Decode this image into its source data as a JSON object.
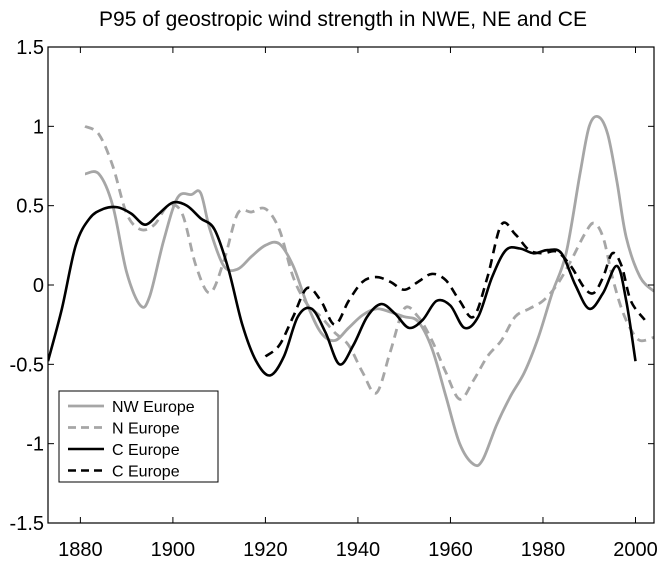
{
  "chart_data": {
    "type": "line",
    "title": "P95 of geostropic wind strength in NWE, NE and CE",
    "xlabel": "",
    "ylabel": "",
    "xlim": [
      1873,
      2004
    ],
    "ylim": [
      -1.5,
      1.5
    ],
    "xticks": [
      1880,
      1900,
      1920,
      1940,
      1960,
      1980,
      2000
    ],
    "yticks": [
      1.5,
      1,
      0.5,
      0,
      -0.5,
      -1,
      -1.5
    ],
    "xtick_labels": [
      "1880",
      "1900",
      "1920",
      "1940",
      "1960",
      "1980",
      "2000"
    ],
    "ytick_labels": [
      "1.5",
      "1",
      "0.5",
      "0",
      "-0.5",
      "-1",
      "-1.5"
    ],
    "legend_position": "bottom-left",
    "grid": false,
    "series": [
      {
        "name": "NW Europe",
        "color": "#a6a6a6",
        "dash": "solid",
        "x": [
          1881,
          1884,
          1887,
          1890,
          1893,
          1895,
          1898,
          1901,
          1904,
          1906,
          1908,
          1911,
          1914,
          1917,
          1920,
          1923,
          1926,
          1929,
          1932,
          1935,
          1938,
          1941,
          1944,
          1947,
          1950,
          1953,
          1956,
          1959,
          1962,
          1965,
          1967,
          1970,
          1973,
          1976,
          1979,
          1982,
          1985,
          1988,
          1990,
          1992,
          1994,
          1996,
          1998,
          2001,
          2004
        ],
        "y": [
          0.7,
          0.7,
          0.5,
          0.08,
          -0.13,
          -0.07,
          0.28,
          0.55,
          0.57,
          0.58,
          0.35,
          0.12,
          0.1,
          0.18,
          0.25,
          0.26,
          0.12,
          -0.12,
          -0.3,
          -0.35,
          -0.27,
          -0.19,
          -0.15,
          -0.17,
          -0.2,
          -0.23,
          -0.4,
          -0.7,
          -1.0,
          -1.13,
          -1.1,
          -0.88,
          -0.7,
          -0.55,
          -0.33,
          -0.05,
          0.2,
          0.7,
          1.0,
          1.06,
          0.95,
          0.65,
          0.3,
          0.05,
          -0.04
        ]
      },
      {
        "name": "N Europe",
        "color": "#a6a6a6",
        "dash": "dashed",
        "x": [
          1881,
          1884,
          1887,
          1890,
          1893,
          1896,
          1899,
          1902,
          1905,
          1908,
          1911,
          1914,
          1917,
          1920,
          1923,
          1926,
          1929,
          1932,
          1935,
          1938,
          1941,
          1944,
          1947,
          1950,
          1953,
          1956,
          1959,
          1962,
          1965,
          1968,
          1971,
          1974,
          1977,
          1980,
          1983,
          1986,
          1989,
          1991,
          1993,
          1995,
          1997,
          1999,
          2001,
          2004
        ],
        "y": [
          1.0,
          0.95,
          0.75,
          0.45,
          0.35,
          0.38,
          0.5,
          0.45,
          0.12,
          -0.05,
          0.15,
          0.45,
          0.46,
          0.48,
          0.35,
          0.05,
          -0.12,
          -0.2,
          -0.3,
          -0.38,
          -0.55,
          -0.68,
          -0.42,
          -0.15,
          -0.2,
          -0.35,
          -0.55,
          -0.72,
          -0.6,
          -0.45,
          -0.35,
          -0.2,
          -0.15,
          -0.1,
          0.0,
          0.15,
          0.32,
          0.39,
          0.3,
          0.05,
          -0.15,
          -0.28,
          -0.35,
          -0.33
        ]
      },
      {
        "name": "C  Europe",
        "color": "#000000",
        "dash": "solid",
        "x": [
          1873,
          1876,
          1879,
          1882,
          1885,
          1888,
          1891,
          1894,
          1897,
          1900,
          1903,
          1906,
          1909,
          1912,
          1915,
          1918,
          1921,
          1924,
          1927,
          1930,
          1933,
          1936,
          1939,
          1942,
          1945,
          1948,
          1951,
          1954,
          1957,
          1960,
          1963,
          1966,
          1969,
          1972,
          1975,
          1978,
          1981,
          1984,
          1987,
          1990,
          1993,
          1996,
          1998,
          2000
        ],
        "y": [
          -0.48,
          -0.15,
          0.25,
          0.42,
          0.48,
          0.49,
          0.45,
          0.38,
          0.45,
          0.52,
          0.5,
          0.42,
          0.35,
          0.1,
          -0.25,
          -0.48,
          -0.57,
          -0.45,
          -0.2,
          -0.15,
          -0.3,
          -0.5,
          -0.38,
          -0.2,
          -0.12,
          -0.18,
          -0.27,
          -0.22,
          -0.1,
          -0.13,
          -0.27,
          -0.2,
          0.05,
          0.22,
          0.23,
          0.2,
          0.22,
          0.2,
          0.0,
          -0.15,
          -0.05,
          0.12,
          -0.1,
          -0.48
        ]
      },
      {
        "name": "C  Europe",
        "color": "#000000",
        "dash": "dashed",
        "x": [
          1920,
          1923,
          1926,
          1929,
          1932,
          1935,
          1938,
          1941,
          1944,
          1947,
          1950,
          1953,
          1956,
          1959,
          1962,
          1965,
          1968,
          1971,
          1974,
          1977,
          1980,
          1983,
          1986,
          1989,
          1991,
          1993,
          1995,
          1997,
          1999,
          2002
        ],
        "y": [
          -0.45,
          -0.38,
          -0.2,
          -0.02,
          -0.1,
          -0.25,
          -0.1,
          0.02,
          0.05,
          0.02,
          -0.03,
          0.02,
          0.07,
          0.03,
          -0.1,
          -0.2,
          0.05,
          0.38,
          0.32,
          0.22,
          0.2,
          0.21,
          0.12,
          -0.02,
          -0.05,
          0.05,
          0.2,
          0.12,
          -0.1,
          -0.22
        ]
      }
    ]
  }
}
